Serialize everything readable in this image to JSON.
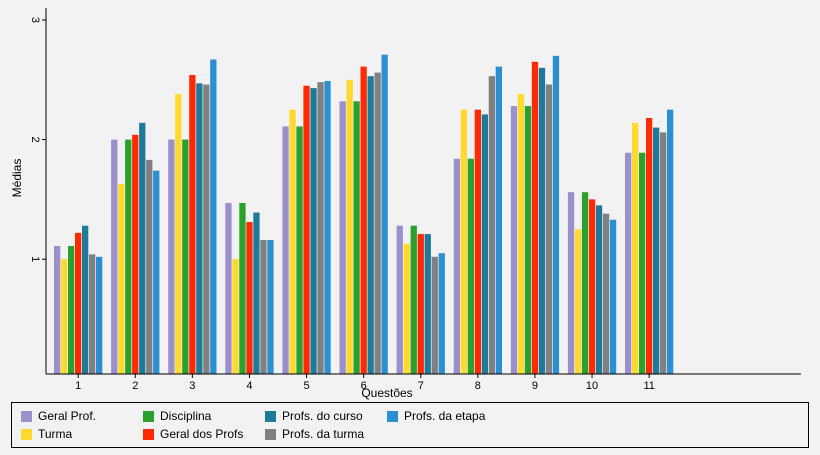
{
  "chart_data": {
    "type": "bar",
    "xlabel": "Questões",
    "ylabel": "Médias",
    "ylim": [
      0.04,
      3.1
    ],
    "yticks": [
      1,
      2,
      3
    ],
    "grid": false,
    "legend_position": "bottom",
    "categories": [
      "1",
      "2",
      "3",
      "4",
      "5",
      "6",
      "7",
      "8",
      "9",
      "10",
      "11"
    ],
    "series": [
      {
        "name": "Geral Prof.",
        "color": "#9b8fcc",
        "values": [
          1.11,
          2.0,
          2.0,
          1.47,
          2.11,
          2.32,
          1.28,
          1.84,
          2.28,
          1.56,
          1.89
        ]
      },
      {
        "name": "Turma",
        "color": "#ffd92f",
        "values": [
          1.0,
          1.63,
          2.38,
          1.0,
          2.25,
          2.5,
          1.13,
          2.25,
          2.38,
          1.25,
          2.14
        ]
      },
      {
        "name": "Disciplina",
        "color": "#2ca02c",
        "values": [
          1.11,
          2.0,
          2.0,
          1.47,
          2.11,
          2.32,
          1.28,
          1.84,
          2.28,
          1.56,
          1.89
        ]
      },
      {
        "name": "Geral dos Profs",
        "color": "#ff2a00",
        "values": [
          1.22,
          2.04,
          2.54,
          1.31,
          2.45,
          2.61,
          1.21,
          2.25,
          2.65,
          1.5,
          2.18
        ]
      },
      {
        "name": "Profs. do curso",
        "color": "#1f7a99",
        "values": [
          1.28,
          2.14,
          2.47,
          1.39,
          2.43,
          2.53,
          1.21,
          2.21,
          2.6,
          1.45,
          2.1
        ]
      },
      {
        "name": "Profs. da turma",
        "color": "#808080",
        "values": [
          1.04,
          1.83,
          2.46,
          1.16,
          2.48,
          2.56,
          1.02,
          2.53,
          2.46,
          1.38,
          2.06
        ]
      },
      {
        "name": "Profs. da etapa",
        "color": "#2c8fd1",
        "values": [
          1.02,
          1.74,
          2.67,
          1.16,
          2.49,
          2.71,
          1.05,
          2.61,
          2.7,
          1.33,
          2.25
        ]
      }
    ]
  }
}
